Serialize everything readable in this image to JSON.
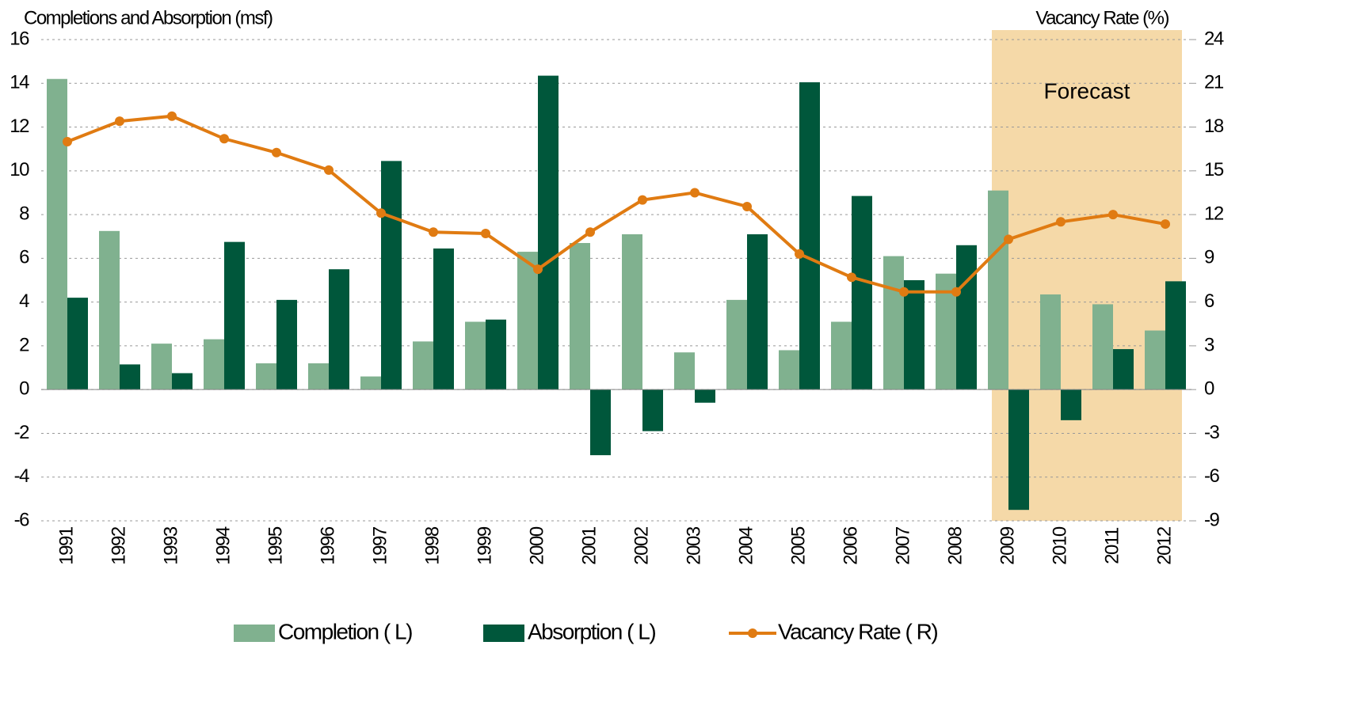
{
  "chart_data": {
    "type": "bar",
    "y_label": "Completions and Absorption (msf)",
    "y2_label": "Vacancy Rate (%)",
    "categories": [
      "1991",
      "1992",
      "1993",
      "1994",
      "1995",
      "1996",
      "1997",
      "1998",
      "1999",
      "2000",
      "2001",
      "2002",
      "2003",
      "2004",
      "2005",
      "2006",
      "2007",
      "2008",
      "2009",
      "2010",
      "2011",
      "2012"
    ],
    "series": [
      {
        "name": "Completion ( L)",
        "type": "bar",
        "color": "#80b18f",
        "values": [
          14.2,
          7.25,
          2.1,
          2.3,
          1.2,
          1.2,
          0.6,
          2.2,
          3.1,
          6.3,
          6.7,
          7.1,
          1.7,
          4.1,
          1.8,
          3.1,
          6.1,
          5.3,
          9.1,
          4.35,
          3.9,
          2.7
        ]
      },
      {
        "name": "Absorption ( L)",
        "type": "bar",
        "color": "#00573b",
        "values": [
          4.2,
          1.15,
          0.75,
          6.75,
          4.1,
          5.5,
          10.45,
          6.45,
          3.2,
          14.35,
          -3.0,
          -1.9,
          -0.6,
          7.1,
          14.05,
          8.85,
          5.0,
          6.6,
          -5.5,
          -1.4,
          1.85,
          4.95
        ]
      },
      {
        "name": "Vacancy Rate ( R)",
        "type": "line",
        "axis": "y2",
        "color": "#e07b12",
        "values": [
          17.0,
          18.4,
          18.75,
          17.2,
          16.25,
          15.05,
          12.1,
          10.8,
          10.7,
          8.25,
          10.8,
          13.0,
          13.5,
          12.55,
          9.3,
          7.7,
          6.7,
          6.7,
          10.3,
          11.5,
          12.0,
          11.35
        ]
      }
    ],
    "ylim": [
      -6,
      16
    ],
    "yticks": [
      -6,
      -4,
      -2,
      0,
      2,
      4,
      6,
      8,
      10,
      12,
      14,
      16
    ],
    "y2lim": [
      -9,
      24
    ],
    "y2ticks": [
      -9,
      -6,
      -3,
      0,
      3,
      6,
      9,
      12,
      15,
      18,
      21,
      24
    ],
    "grid": true,
    "legend": "bottom",
    "annotation": {
      "text": "Forecast",
      "start": "2009",
      "end": "2012",
      "color": "#f5d9a8"
    }
  }
}
